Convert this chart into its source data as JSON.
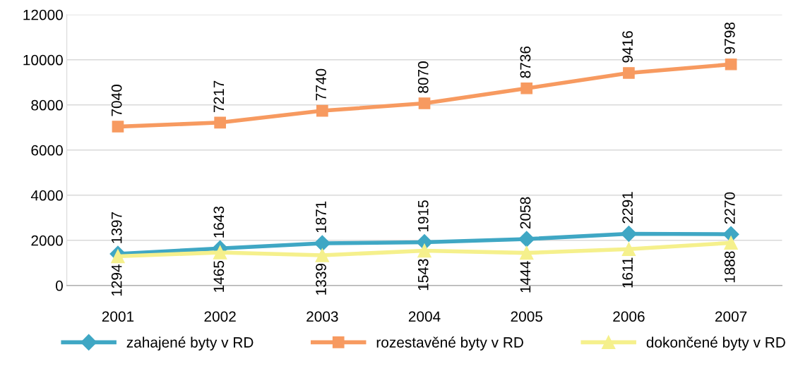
{
  "chart_data": {
    "type": "line",
    "categories": [
      "2001",
      "2002",
      "2003",
      "2004",
      "2005",
      "2006",
      "2007"
    ],
    "series": [
      {
        "name": "zahajené byty v RD",
        "color": "#3fa7c4",
        "marker": "diamond",
        "values": [
          1397,
          1643,
          1871,
          1915,
          2058,
          2291,
          2270
        ]
      },
      {
        "name": "rozestavěné byty v RD",
        "color": "#f79a60",
        "marker": "square",
        "values": [
          7040,
          7217,
          7740,
          8070,
          8736,
          9416,
          9798
        ]
      },
      {
        "name": "dokončené byty v RD",
        "color": "#f5f08c",
        "marker": "triangle",
        "values": [
          1294,
          1465,
          1339,
          1543,
          1444,
          1611,
          1888
        ]
      }
    ],
    "ylim": [
      0,
      12000
    ],
    "yticks": [
      0,
      2000,
      4000,
      6000,
      8000,
      10000,
      12000
    ],
    "grid": "y",
    "legend": "bottom",
    "data_labels": true,
    "line_style": "solid"
  }
}
